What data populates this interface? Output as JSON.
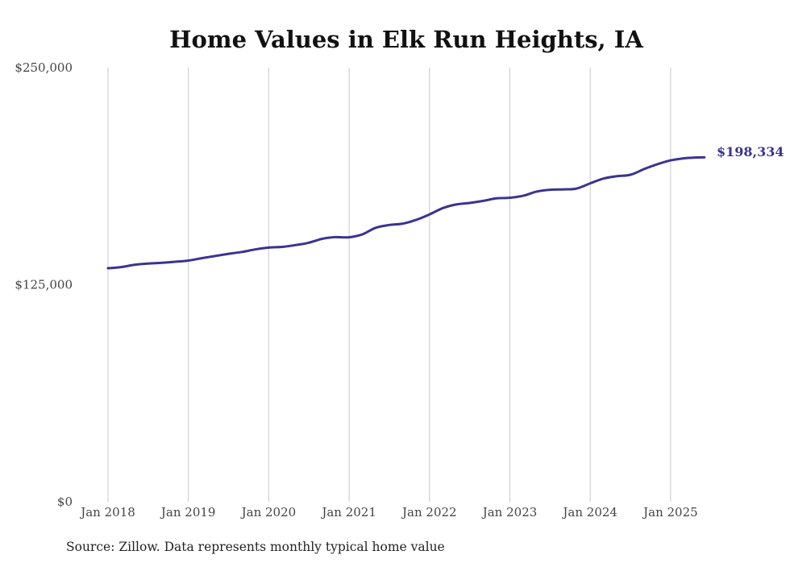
{
  "chart_data": {
    "type": "line",
    "title": "Home Values in Elk Run Heights, IA",
    "source": "Source: Zillow. Data represents monthly typical home value",
    "xlabel": "",
    "ylabel": "",
    "ylim": [
      0,
      250000
    ],
    "yticks": [
      {
        "value": 0,
        "label": "$0"
      },
      {
        "value": 125000,
        "label": "$125,000"
      },
      {
        "value": 250000,
        "label": "$250,000"
      }
    ],
    "xticks": [
      {
        "value": 2018.0,
        "label": "Jan 2018"
      },
      {
        "value": 2019.0,
        "label": "Jan 2019"
      },
      {
        "value": 2020.0,
        "label": "Jan 2020"
      },
      {
        "value": 2021.0,
        "label": "Jan 2021"
      },
      {
        "value": 2022.0,
        "label": "Jan 2022"
      },
      {
        "value": 2023.0,
        "label": "Jan 2023"
      },
      {
        "value": 2024.0,
        "label": "Jan 2024"
      },
      {
        "value": 2025.0,
        "label": "Jan 2025"
      }
    ],
    "grid": "vertical",
    "line_color": "#3a3491",
    "end_label": "$198,334",
    "series": [
      {
        "x": [
          2018.0,
          2018.17,
          2018.33,
          2018.5,
          2018.67,
          2018.83,
          2019.0,
          2019.17,
          2019.33,
          2019.5,
          2019.67,
          2019.83,
          2020.0,
          2020.17,
          2020.33,
          2020.5,
          2020.67,
          2020.83,
          2021.0,
          2021.17,
          2021.33,
          2021.5,
          2021.67,
          2021.83,
          2022.0,
          2022.17,
          2022.33,
          2022.5,
          2022.67,
          2022.83,
          2023.0,
          2023.17,
          2023.33,
          2023.5,
          2023.67,
          2023.83,
          2024.0,
          2024.17,
          2024.33,
          2024.5,
          2024.67,
          2024.83,
          2025.0,
          2025.17,
          2025.33,
          2025.42
        ],
        "values": [
          134500,
          135200,
          136500,
          137200,
          137600,
          138200,
          138900,
          140300,
          141500,
          142800,
          143900,
          145300,
          146400,
          146800,
          147800,
          149200,
          151500,
          152400,
          152300,
          154100,
          157800,
          159400,
          160200,
          162300,
          165500,
          169200,
          171200,
          172100,
          173300,
          174700,
          175100,
          176300,
          178600,
          179700,
          179900,
          180400,
          183400,
          186200,
          187500,
          188300,
          191600,
          194300,
          196600,
          197800,
          198300,
          198334
        ]
      }
    ]
  }
}
